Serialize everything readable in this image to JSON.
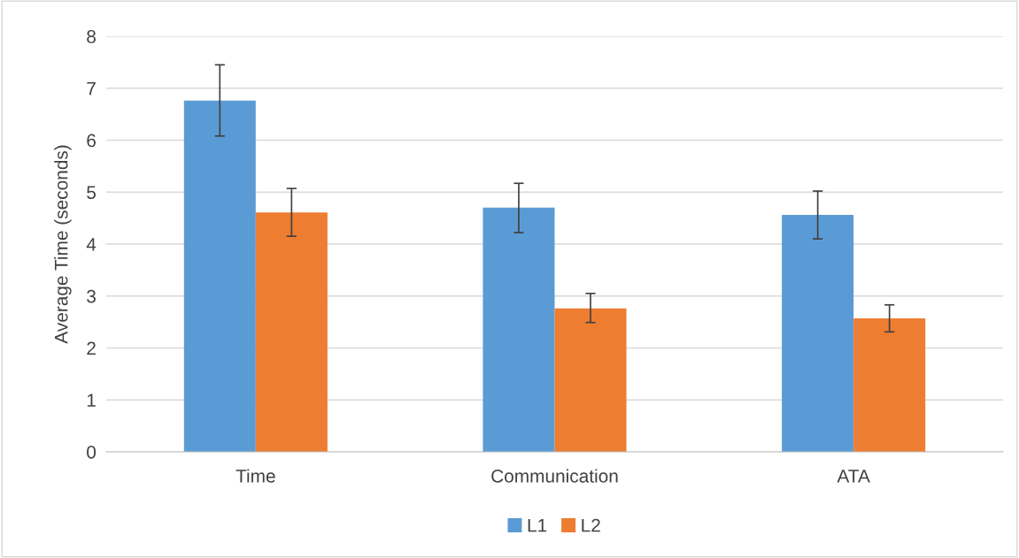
{
  "chart_data": {
    "type": "bar",
    "ylabel": "Average Time (seconds)",
    "categories": [
      "Time",
      "Communication",
      "ATA"
    ],
    "series": [
      {
        "name": "L1",
        "color": "#5b9bd5",
        "values": [
          6.76,
          4.7,
          4.56
        ],
        "errors": [
          [
            6.08,
            7.45
          ],
          [
            4.22,
            5.17
          ],
          [
            4.1,
            5.02
          ]
        ]
      },
      {
        "name": "L2",
        "color": "#ed7d31",
        "values": [
          4.61,
          2.76,
          2.57
        ],
        "errors": [
          [
            4.15,
            5.07
          ],
          [
            2.49,
            3.05
          ],
          [
            2.31,
            2.83
          ]
        ]
      }
    ],
    "ylim": [
      0,
      8
    ],
    "yticks": [
      0,
      1,
      2,
      3,
      4,
      5,
      6,
      7,
      8
    ],
    "grid": "y",
    "legend": "bottom"
  }
}
